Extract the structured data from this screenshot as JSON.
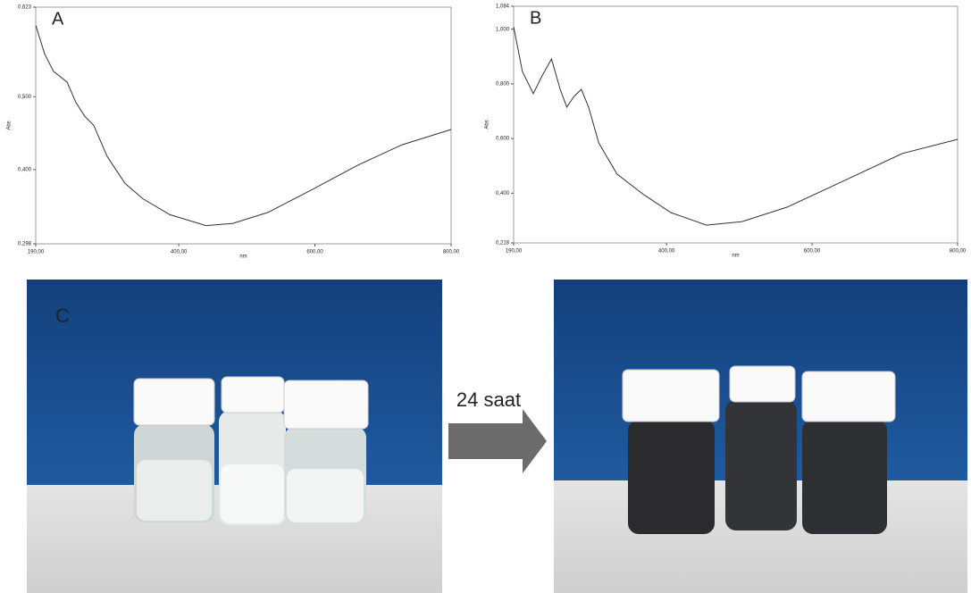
{
  "chart_data": [
    {
      "type": "line",
      "annotation": "A",
      "x_label": "nm",
      "y_label": "Abs",
      "color": "#333333",
      "x": [
        190,
        203,
        216,
        236,
        249,
        262,
        275,
        295,
        321,
        347,
        387,
        440,
        479,
        531,
        597,
        663,
        728,
        800
      ],
      "values": [
        0.598,
        0.559,
        0.535,
        0.52,
        0.492,
        0.473,
        0.461,
        0.418,
        0.381,
        0.36,
        0.338,
        0.323,
        0.326,
        0.341,
        0.373,
        0.406,
        0.434,
        0.455
      ],
      "xlim": [
        190,
        800
      ],
      "ylim": [
        0.298,
        0.623
      ],
      "xticks": [
        {
          "value": 190,
          "label": "190,00"
        },
        {
          "value": 400,
          "label": "400,00"
        },
        {
          "value": 600,
          "label": "600,00"
        },
        {
          "value": 800,
          "label": "800,00"
        }
      ],
      "yticks": [
        {
          "value": 0.298,
          "label": "0,298"
        },
        {
          "value": 0.4,
          "label": "0,400"
        },
        {
          "value": 0.5,
          "label": "0,500"
        },
        {
          "value": 0.623,
          "label": "0,623"
        }
      ]
    },
    {
      "type": "line",
      "annotation": "B",
      "x_label": "nm",
      "y_label": "Abs",
      "color": "#333333",
      "x": [
        190,
        202,
        217,
        229,
        242,
        254,
        263,
        273,
        283,
        293,
        307,
        332,
        369,
        406,
        455,
        504,
        566,
        650,
        724,
        800
      ],
      "values": [
        1.009,
        0.845,
        0.764,
        0.829,
        0.891,
        0.78,
        0.715,
        0.754,
        0.78,
        0.715,
        0.584,
        0.47,
        0.394,
        0.329,
        0.283,
        0.296,
        0.349,
        0.453,
        0.545,
        0.597
      ],
      "xlim": [
        190,
        800
      ],
      "ylim": [
        0.218,
        1.084
      ],
      "xticks": [
        {
          "value": 190,
          "label": "190,00"
        },
        {
          "value": 400,
          "label": "400,00"
        },
        {
          "value": 600,
          "label": "600,00"
        },
        {
          "value": 800,
          "label": "800,00"
        }
      ],
      "yticks": [
        {
          "value": 0.218,
          "label": "0,218"
        },
        {
          "value": 0.4,
          "label": "0,400"
        },
        {
          "value": 0.6,
          "label": "0,600"
        },
        {
          "value": 0.8,
          "label": "0,800"
        },
        {
          "value": 1.0,
          "label": "1,000"
        },
        {
          "value": 1.084,
          "label": "1,084"
        }
      ]
    }
  ],
  "photos": {
    "panel_label": "C",
    "arrow_label": "24 saat"
  }
}
